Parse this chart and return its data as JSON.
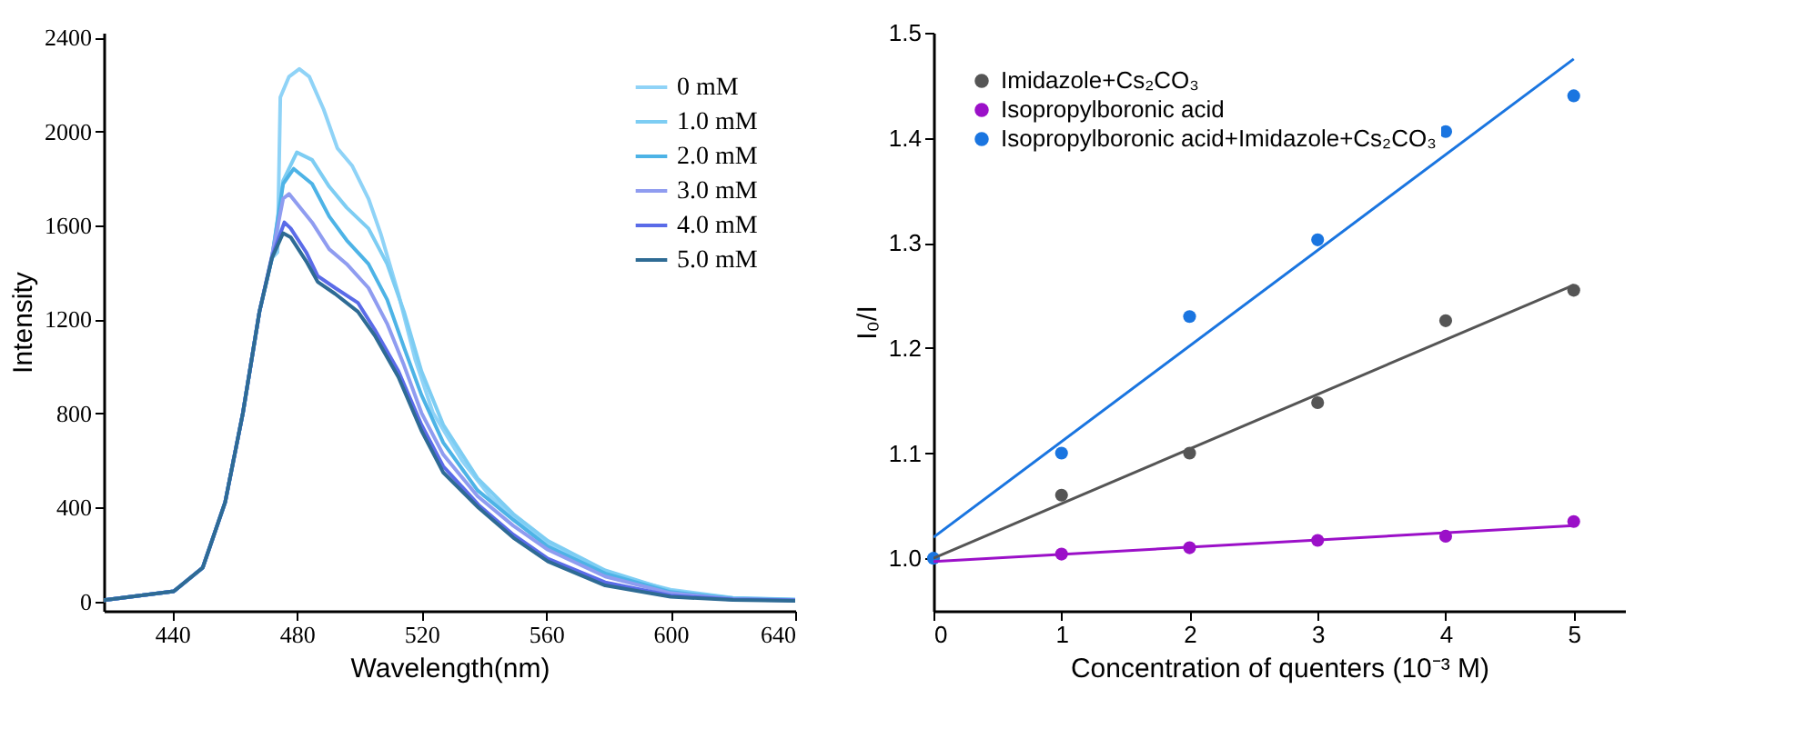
{
  "chart_data": [
    {
      "type": "line",
      "xlabel": "Wavelength(nm)",
      "ylabel": "Intensity",
      "xlim": [
        418,
        640
      ],
      "ylim": [
        -40,
        2420
      ],
      "xticks": [
        440,
        480,
        520,
        560,
        600,
        640
      ],
      "yticks": [
        0,
        400,
        800,
        1200,
        1600,
        2000,
        2400
      ],
      "legend": "top right",
      "grid": false,
      "line_style": "solid",
      "marker": "none",
      "series": [
        {
          "name": "0 mM",
          "color": "#8fd3f7",
          "x": [
            418,
            440.5,
            449.8,
            457,
            462.7,
            468,
            472,
            473.8,
            474.7,
            477.5,
            480.8,
            484,
            488.6,
            493,
            497.8,
            503,
            507,
            512.6,
            518,
            523.7,
            533,
            542,
            553,
            564,
            579,
            600,
            620,
            640
          ],
          "values": [
            5,
            43,
            144,
            423,
            803,
            1233,
            1460,
            1486,
            2145,
            2233,
            2266,
            2233,
            2094,
            1929,
            1853,
            1714,
            1562,
            1309,
            1030,
            803,
            600,
            448,
            322,
            220,
            119,
            50,
            15,
            8
          ]
        },
        {
          "name": "1.0 mM",
          "color": "#7dcdf3",
          "x": [
            418,
            440.5,
            449.8,
            457,
            462.7,
            468,
            472,
            475.6,
            480,
            484.9,
            490.4,
            496,
            503,
            509,
            514.4,
            520,
            527,
            538,
            549.5,
            560.6,
            579,
            600,
            620,
            640
          ],
          "values": [
            5,
            43,
            144,
            423,
            803,
            1233,
            1460,
            1790,
            1911,
            1879,
            1765,
            1676,
            1587,
            1436,
            1233,
            980,
            752,
            524,
            372,
            258,
            132,
            45,
            14,
            7
          ]
        },
        {
          "name": "2.0 mM",
          "color": "#4db3e6",
          "x": [
            418,
            440.5,
            449.8,
            457,
            462.7,
            468,
            472,
            475.6,
            479,
            484.9,
            490.4,
            496,
            503,
            509,
            514.4,
            520,
            527,
            538,
            549.5,
            560.6,
            579,
            600,
            620,
            640
          ],
          "values": [
            5,
            43,
            144,
            423,
            803,
            1233,
            1460,
            1777,
            1841,
            1777,
            1638,
            1537,
            1436,
            1284,
            1081,
            879,
            676,
            473,
            347,
            233,
            119,
            40,
            12,
            6
          ]
        },
        {
          "name": "3.0 mM",
          "color": "#8f9cf0",
          "x": [
            418,
            440.5,
            449.8,
            457,
            462.7,
            468,
            472,
            475.6,
            477.5,
            484.9,
            490.4,
            496,
            503,
            509,
            514.4,
            520,
            527,
            538,
            549.5,
            560.6,
            579,
            600,
            620,
            640
          ],
          "values": [
            5,
            43,
            144,
            423,
            803,
            1233,
            1470,
            1714,
            1734,
            1613,
            1499,
            1436,
            1334,
            1182,
            1005,
            803,
            625,
            448,
            322,
            220,
            106,
            35,
            10,
            5
          ]
        },
        {
          "name": "4.0 mM",
          "color": "#5a6be8",
          "x": [
            418,
            440.5,
            449.8,
            457,
            462.7,
            468,
            472,
            476,
            478,
            483,
            486.7,
            492.3,
            499.6,
            505,
            512.6,
            520,
            527,
            538.4,
            549.5,
            560.6,
            579,
            600,
            620,
            640
          ],
          "values": [
            5,
            43,
            144,
            423,
            803,
            1233,
            1465,
            1613,
            1588,
            1486,
            1385,
            1334,
            1271,
            1157,
            980,
            752,
            575,
            410,
            284,
            182,
            81,
            25,
            8,
            4
          ]
        },
        {
          "name": "5.0 mM",
          "color": "#2e6b94",
          "x": [
            418,
            440.5,
            449.8,
            457,
            462.7,
            468,
            472,
            475.6,
            478,
            483,
            486.7,
            492.3,
            499.6,
            505,
            512.6,
            520,
            527,
            538.4,
            549.5,
            560.6,
            579,
            600,
            620,
            640
          ],
          "values": [
            5,
            43,
            144,
            423,
            803,
            1233,
            1461,
            1567,
            1550,
            1448,
            1360,
            1309,
            1233,
            1132,
            955,
            727,
            549,
            398,
            271,
            170,
            68,
            20,
            6,
            3
          ]
        }
      ]
    },
    {
      "type": "scatter",
      "xlabel": "Concentration of quenters (10⁻³ M)",
      "ylabel": "I₀/I",
      "xlim": [
        0,
        5.4
      ],
      "ylim": [
        0.95,
        1.5
      ],
      "xticks": [
        0,
        1,
        2,
        3,
        4,
        5
      ],
      "yticks": [
        {
          "value": 1,
          "label": "1.0"
        },
        1.1,
        1.2,
        1.3,
        1.4,
        1.5
      ],
      "legend": "top left",
      "grid": false,
      "marker": "circle",
      "line_style": "solid",
      "series": [
        {
          "name": "Imidazole+Cs₂CO₃",
          "color": "#555555",
          "x": [
            1,
            2,
            3,
            4,
            5
          ],
          "values": [
            1.06,
            1.1,
            1.148,
            1.226,
            1.255
          ]
        },
        {
          "name": "Isopropylboronic acid",
          "color": "#9b10c8",
          "x": [
            1,
            2,
            3,
            4,
            5
          ],
          "values": [
            1.004,
            1.01,
            1.017,
            1.021,
            1.035
          ]
        },
        {
          "name": "Isopropylboronic acid+Imidazole+Cs₂CO₃",
          "color": "#1a75e0",
          "x": [
            0,
            1,
            2,
            3,
            4,
            5
          ],
          "values": [
            1.0,
            1.1,
            1.23,
            1.303,
            1.406,
            1.44
          ]
        },
        {
          "type": "line",
          "marker": "none",
          "color": "#555555",
          "x": [
            0,
            5
          ],
          "values": [
            1.0,
            1.26
          ]
        },
        {
          "type": "line",
          "marker": "none",
          "color": "#9b10c8",
          "x": [
            0,
            5
          ],
          "values": [
            0.997,
            1.031
          ]
        },
        {
          "type": "line",
          "marker": "none",
          "color": "#1a75e0",
          "x": [
            0,
            5
          ],
          "values": [
            1.02,
            1.475
          ]
        }
      ]
    }
  ]
}
